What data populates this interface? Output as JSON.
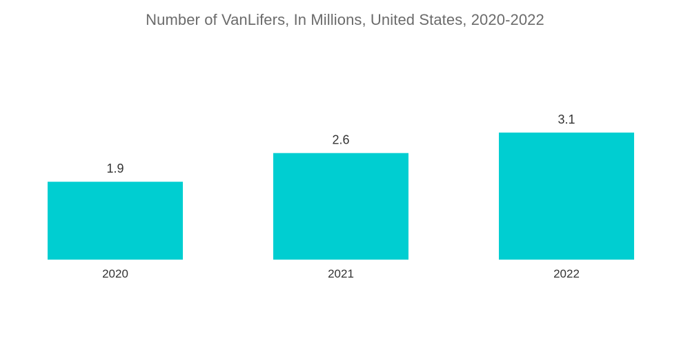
{
  "chart_data": {
    "type": "bar",
    "title": "Number of VanLifers, In Millions, United States, 2020-2022",
    "categories": [
      "2020",
      "2021",
      "2022"
    ],
    "values": [
      1.9,
      2.6,
      3.1
    ],
    "data_labels": [
      "1.9",
      "2.6",
      "3.1"
    ],
    "xlabel": "",
    "ylabel": "",
    "ylim": [
      0,
      3.1
    ],
    "grid": false,
    "legend": "none",
    "bar_color": "#00CED1"
  }
}
